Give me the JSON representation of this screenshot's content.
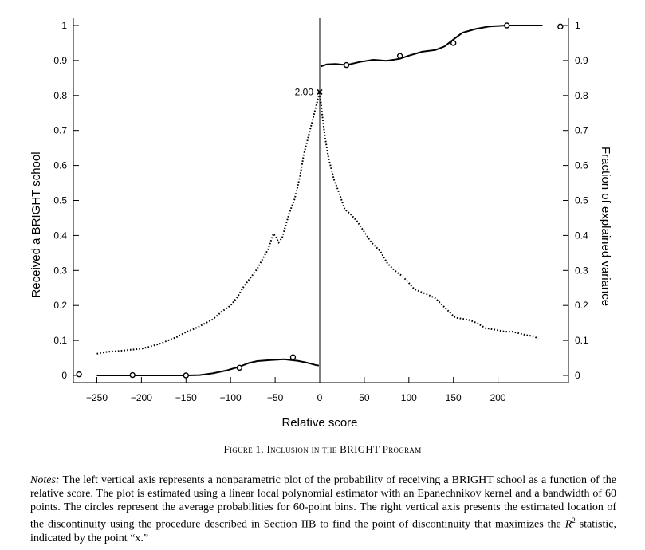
{
  "chart_data": {
    "type": "line",
    "xlabel": "Relative score",
    "ylabel_left": "Received a BRIGHT school",
    "ylabel_right": "Fraction of explained variance",
    "xlim": [
      -258,
      252
    ],
    "ylim": [
      0,
      1
    ],
    "x_ticks": [
      -250,
      -200,
      -150,
      -100,
      -50,
      0,
      50,
      100,
      150,
      200
    ],
    "x_tick_labels": [
      "−250",
      "−200",
      "−150",
      "−100",
      "−50",
      "0",
      "50",
      "100",
      "150",
      "200"
    ],
    "y_ticks": [
      0,
      0.1,
      0.2,
      0.3,
      0.4,
      0.5,
      0.6,
      0.7,
      0.8,
      0.9,
      1
    ],
    "y_tick_labels": [
      "0",
      "0.1",
      "0.2",
      "0.3",
      "0.4",
      "0.5",
      "0.6",
      "0.7",
      "0.8",
      "0.9",
      "1"
    ],
    "discontinuity_x": 0,
    "annotation": {
      "label": "2.00",
      "marker": "x",
      "x": 0,
      "y": 0.81
    },
    "series": [
      {
        "role": "probability-left",
        "style": "solid",
        "points": [
          [
            -250,
            0
          ],
          [
            -230,
            0
          ],
          [
            -200,
            0
          ],
          [
            -170,
            0
          ],
          [
            -150,
            0
          ],
          [
            -135,
            0.001
          ],
          [
            -120,
            0.006
          ],
          [
            -105,
            0.014
          ],
          [
            -90,
            0.025
          ],
          [
            -80,
            0.035
          ],
          [
            -70,
            0.041
          ],
          [
            -55,
            0.044
          ],
          [
            -40,
            0.046
          ],
          [
            -25,
            0.042
          ],
          [
            -15,
            0.037
          ],
          [
            -5,
            0.03
          ],
          [
            -1,
            0.028
          ]
        ]
      },
      {
        "role": "probability-right",
        "style": "solid",
        "points": [
          [
            1,
            0.883
          ],
          [
            8,
            0.889
          ],
          [
            18,
            0.89
          ],
          [
            30,
            0.887
          ],
          [
            45,
            0.896
          ],
          [
            60,
            0.902
          ],
          [
            75,
            0.899
          ],
          [
            90,
            0.905
          ],
          [
            100,
            0.914
          ],
          [
            115,
            0.925
          ],
          [
            130,
            0.93
          ],
          [
            140,
            0.94
          ],
          [
            150,
            0.96
          ],
          [
            160,
            0.979
          ],
          [
            175,
            0.99
          ],
          [
            190,
            0.997
          ],
          [
            210,
            1
          ],
          [
            230,
            1
          ],
          [
            250,
            1
          ]
        ]
      },
      {
        "role": "explained-variance",
        "style": "dotted",
        "points": [
          [
            -250,
            0.062
          ],
          [
            -240,
            0.067
          ],
          [
            -225,
            0.07
          ],
          [
            -210,
            0.074
          ],
          [
            -200,
            0.076
          ],
          [
            -190,
            0.083
          ],
          [
            -180,
            0.09
          ],
          [
            -170,
            0.1
          ],
          [
            -160,
            0.11
          ],
          [
            -150,
            0.124
          ],
          [
            -140,
            0.134
          ],
          [
            -130,
            0.147
          ],
          [
            -120,
            0.16
          ],
          [
            -110,
            0.182
          ],
          [
            -100,
            0.2
          ],
          [
            -92,
            0.225
          ],
          [
            -85,
            0.255
          ],
          [
            -78,
            0.278
          ],
          [
            -70,
            0.305
          ],
          [
            -64,
            0.333
          ],
          [
            -58,
            0.36
          ],
          [
            -54,
            0.39
          ],
          [
            -52,
            0.405
          ],
          [
            -49,
            0.395
          ],
          [
            -46,
            0.38
          ],
          [
            -42,
            0.394
          ],
          [
            -38,
            0.43
          ],
          [
            -34,
            0.465
          ],
          [
            -28,
            0.505
          ],
          [
            -22,
            0.57
          ],
          [
            -18,
            0.63
          ],
          [
            -13,
            0.68
          ],
          [
            -8,
            0.73
          ],
          [
            -4,
            0.77
          ],
          [
            -1,
            0.8
          ],
          [
            0,
            0.81
          ],
          [
            3,
            0.74
          ],
          [
            6,
            0.68
          ],
          [
            10,
            0.62
          ],
          [
            16,
            0.56
          ],
          [
            22,
            0.52
          ],
          [
            28,
            0.475
          ],
          [
            35,
            0.46
          ],
          [
            42,
            0.44
          ],
          [
            50,
            0.41
          ],
          [
            58,
            0.38
          ],
          [
            68,
            0.355
          ],
          [
            76,
            0.32
          ],
          [
            84,
            0.3
          ],
          [
            92,
            0.285
          ],
          [
            98,
            0.27
          ],
          [
            106,
            0.247
          ],
          [
            114,
            0.238
          ],
          [
            122,
            0.23
          ],
          [
            130,
            0.22
          ],
          [
            138,
            0.2
          ],
          [
            146,
            0.18
          ],
          [
            152,
            0.165
          ],
          [
            160,
            0.162
          ],
          [
            168,
            0.158
          ],
          [
            176,
            0.15
          ],
          [
            186,
            0.135
          ],
          [
            198,
            0.13
          ],
          [
            208,
            0.125
          ],
          [
            216,
            0.125
          ],
          [
            224,
            0.12
          ],
          [
            232,
            0.115
          ],
          [
            240,
            0.112
          ],
          [
            245,
            0.105
          ]
        ]
      },
      {
        "role": "bin-averages",
        "style": "circles",
        "points": [
          [
            -270,
            0.003
          ],
          [
            -210,
            0.001
          ],
          [
            -150,
            0
          ],
          [
            -90,
            0.022
          ],
          [
            -30,
            0.052
          ],
          [
            30,
            0.887
          ],
          [
            90,
            0.913
          ],
          [
            150,
            0.95
          ],
          [
            210,
            1
          ],
          [
            270,
            0.997
          ]
        ]
      }
    ]
  },
  "caption": {
    "figure": "Figure 1.",
    "title": "Inclusion in the BRIGHT Program"
  },
  "notes": {
    "label": "Notes:",
    "text_before_r2": " The left vertical axis represents a nonparametric plot of the probability of receiving a BRIGHT school as a function of the relative score. The plot is estimated using a linear local polynomial estimator with an Epanechnikov kernel and a bandwidth of 60 points. The circles represent the average probabilities for 60-point bins. The right vertical axis presents the estimated location of the discontinuity using the procedure described in Section IIB to find the point of discontinuity that maximizes the ",
    "r2_symbol": "R",
    "r2_exponent": "2",
    "text_after_r2": " statistic, indicated by the point “x.”"
  }
}
